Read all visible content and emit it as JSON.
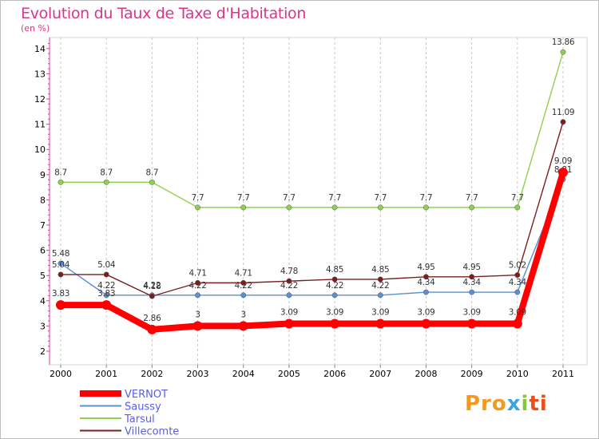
{
  "chart_data": {
    "type": "line",
    "title": "Evolution du Taux de Taxe d'Habitation",
    "ylabel": "(en %)",
    "x": [
      "2000",
      "2001",
      "2002",
      "2003",
      "2004",
      "2005",
      "2006",
      "2007",
      "2008",
      "2009",
      "2010",
      "2011"
    ],
    "yticks": [
      "2",
      "3",
      "4",
      "5",
      "6",
      "7",
      "8",
      "9",
      "10",
      "11",
      "12",
      "13",
      "14"
    ],
    "ylim": [
      2,
      14.3
    ],
    "series": [
      {
        "name": "Tarsul",
        "color": "#8fd14f",
        "values": [
          8.7,
          8.7,
          8.7,
          7.7,
          7.7,
          7.7,
          7.7,
          7.7,
          7.7,
          7.7,
          7.7,
          13.86
        ],
        "labels": [
          "8.7",
          "8.7",
          "8.7",
          "7.7",
          "7.7",
          "7.7",
          "7.7",
          "7.7",
          "7.7",
          "7.7",
          "7.7",
          "13.86"
        ]
      },
      {
        "name": "Saussy",
        "color": "#5b8fd1",
        "values": [
          5.48,
          4.22,
          4.22,
          4.22,
          4.22,
          4.22,
          4.22,
          4.22,
          4.34,
          4.34,
          4.34,
          8.81
        ],
        "labels": [
          "5.48",
          "4.22",
          "4.22",
          "4.22",
          "4.22",
          "4.22",
          "4.22",
          "4.22",
          "4.34",
          "4.34",
          "4.34",
          "8.81"
        ]
      },
      {
        "name": "Villecomte",
        "color": "#7a1f1f",
        "values": [
          5.04,
          5.04,
          4.18,
          4.71,
          4.71,
          4.78,
          4.85,
          4.85,
          4.95,
          4.95,
          5.02,
          11.09
        ],
        "labels": [
          "5.04",
          "5.04",
          "4.18",
          "4.71",
          "4.71",
          "4.78",
          "4.85",
          "4.85",
          "4.95",
          "4.95",
          "5.02",
          "11.09"
        ]
      },
      {
        "name": "VERNOT",
        "color": "#ff0000",
        "values": [
          3.83,
          3.83,
          2.86,
          3,
          3,
          3.09,
          3.09,
          3.09,
          3.09,
          3.09,
          3.09,
          9.09
        ],
        "labels": [
          "3.83",
          "3.83",
          "2.86",
          "3",
          "3",
          "3.09",
          "3.09",
          "3.09",
          "3.09",
          "3.09",
          "3.09",
          "9.09"
        ]
      }
    ],
    "legend": [
      "VERNOT",
      "Saussy",
      "Tarsul",
      "Villecomte"
    ],
    "grid": "vertical dashed"
  },
  "brand": {
    "p1": "Pro",
    "p2": "x",
    "p3": "i",
    "p4": "ti"
  }
}
